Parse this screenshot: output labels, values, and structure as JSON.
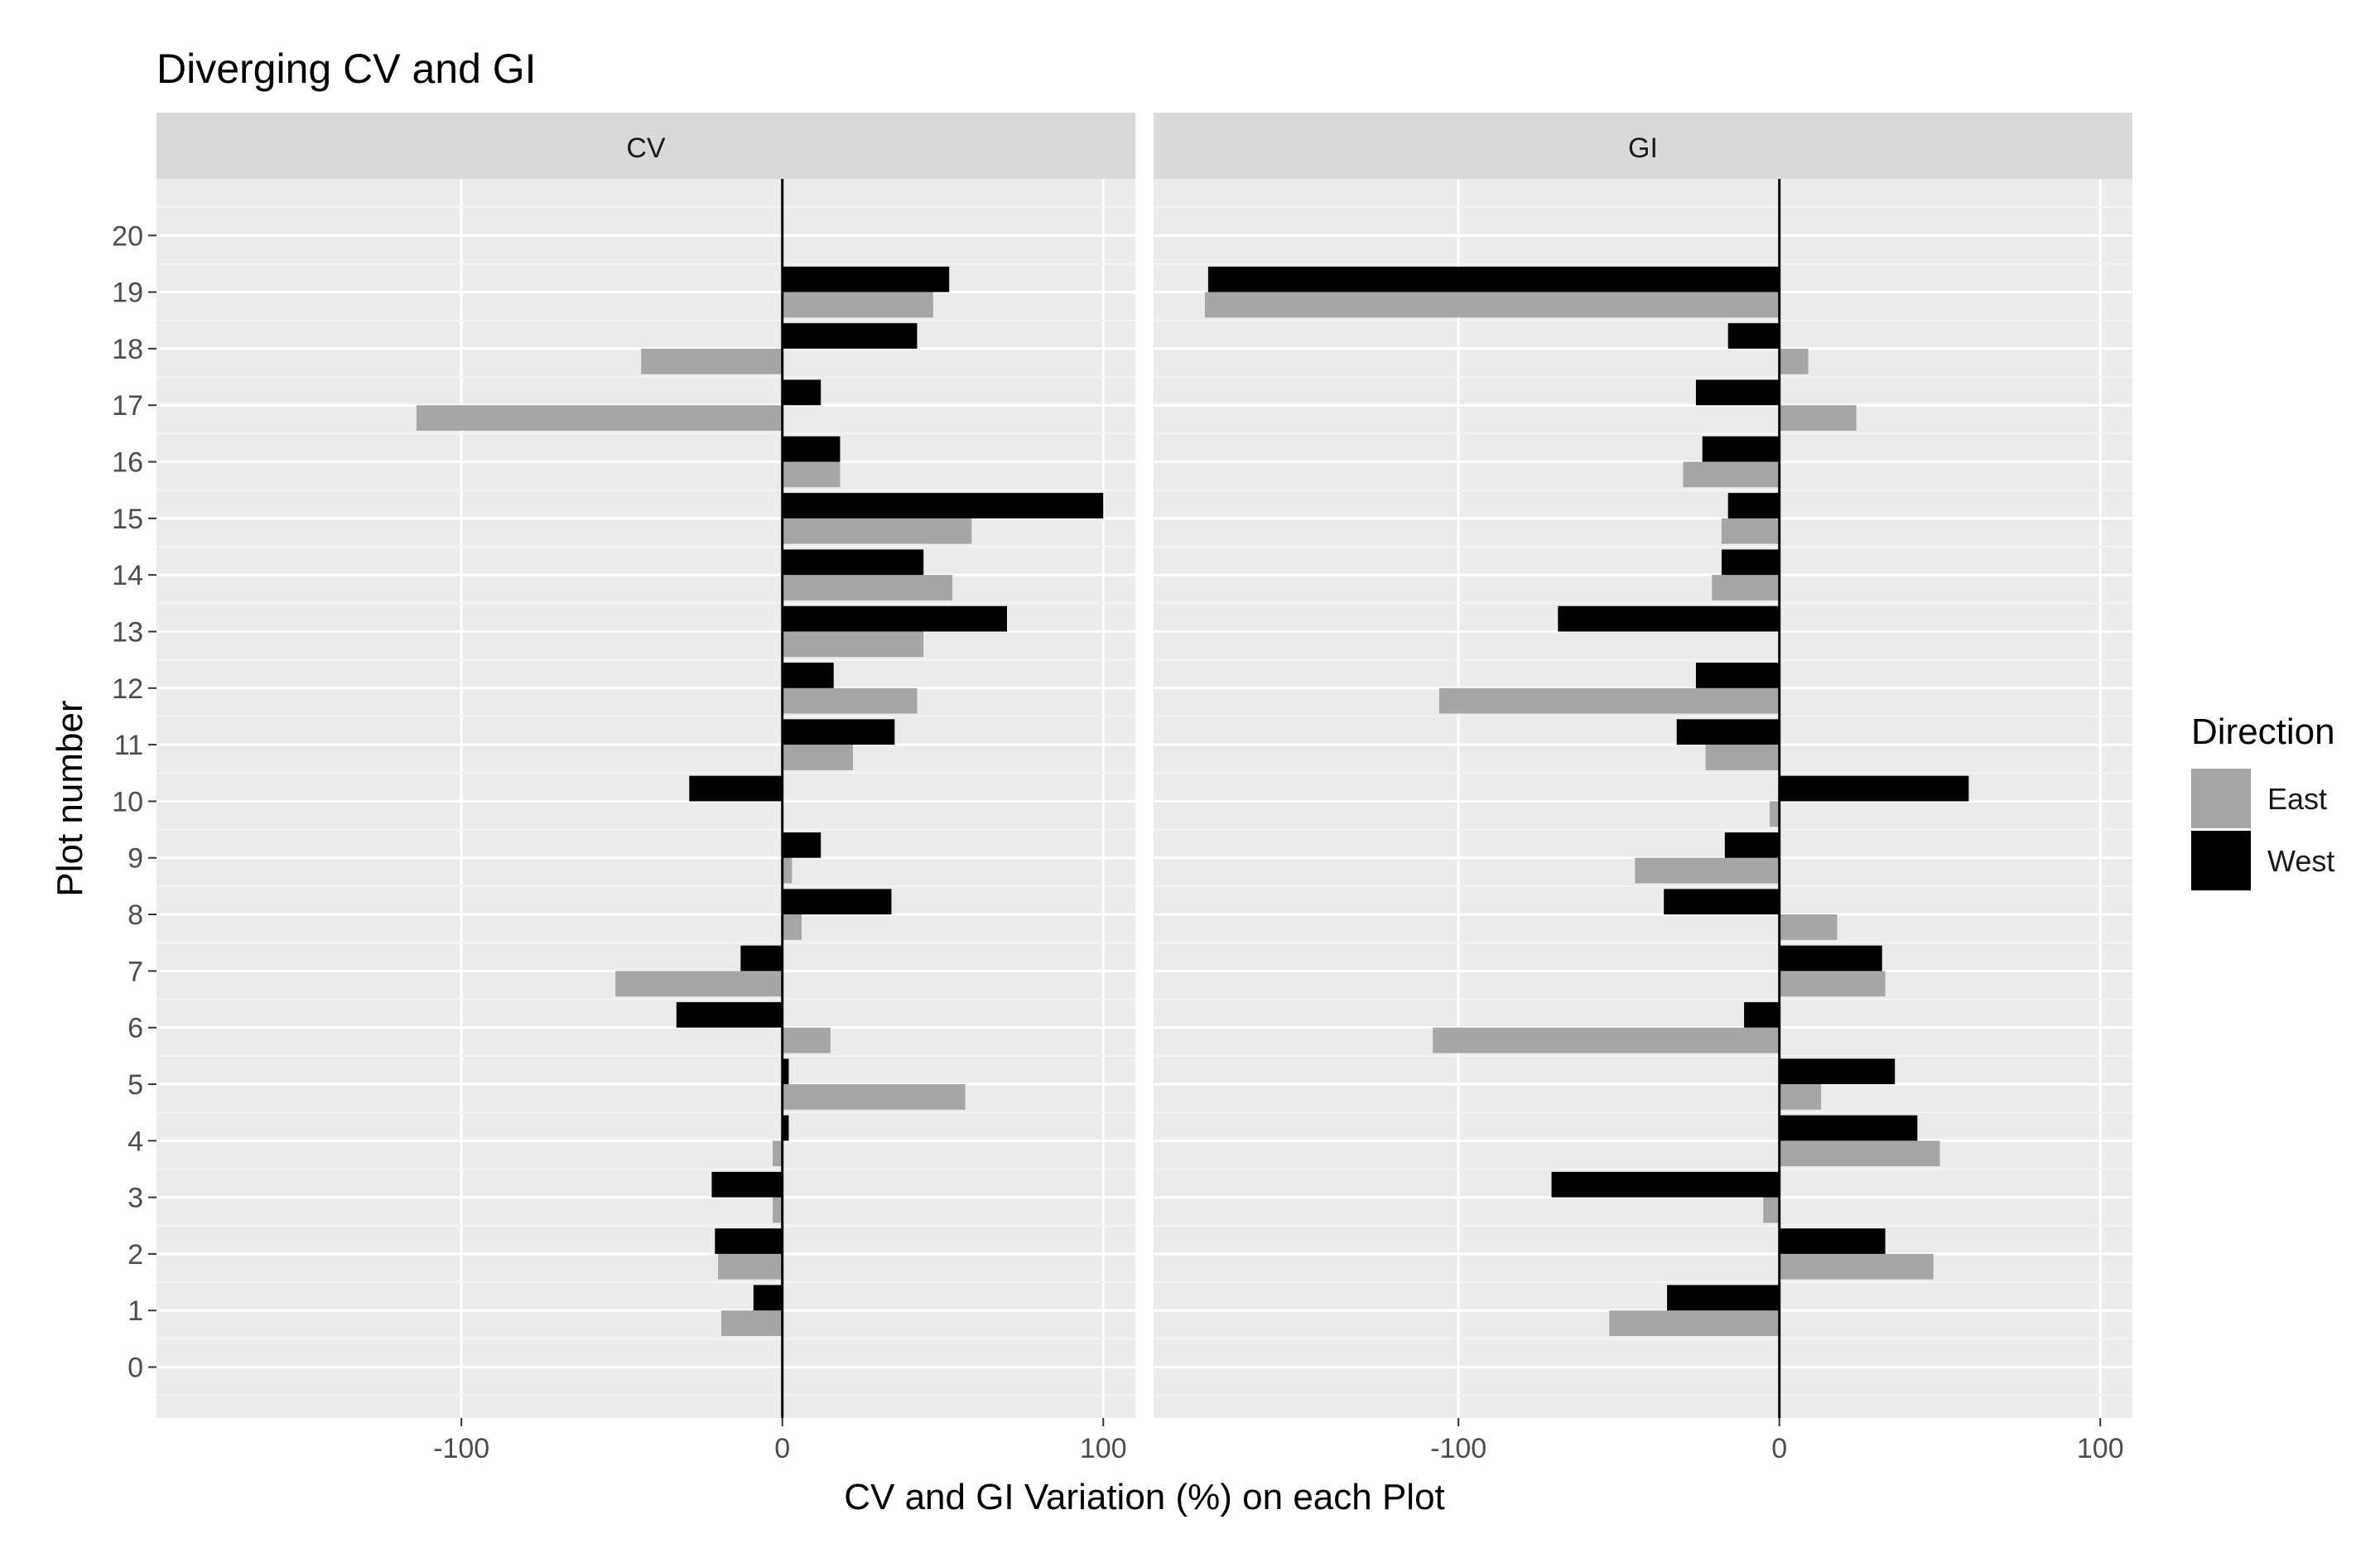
{
  "chart_data": {
    "type": "bar",
    "orientation": "horizontal",
    "title": "Diverging CV and GI",
    "xlabel": "CV and GI Variation (%) on each Plot",
    "ylabel": "Plot number",
    "xlim": [
      -195,
      110
    ],
    "ylim": [
      -0.9,
      21
    ],
    "xticks": [
      -100,
      0,
      100
    ],
    "yticks": [
      0,
      1,
      2,
      3,
      4,
      5,
      6,
      7,
      8,
      9,
      10,
      11,
      12,
      13,
      14,
      15,
      16,
      17,
      18,
      19,
      20
    ],
    "grid": true,
    "legend": {
      "title": "Direction",
      "position": "right",
      "entries": [
        {
          "name": "East",
          "color": "#a6a6a6"
        },
        {
          "name": "West",
          "color": "#000000"
        }
      ]
    },
    "plots": [
      1,
      2,
      3,
      4,
      5,
      6,
      7,
      8,
      9,
      10,
      11,
      12,
      13,
      14,
      15,
      16,
      17,
      18,
      19
    ],
    "panels": [
      {
        "name": "CV",
        "series": [
          {
            "name": "East",
            "values": [
              -19,
              -20,
              -3,
              -3,
              57,
              15,
              -52,
              6,
              3,
              0,
              22,
              42,
              44,
              53,
              59,
              18,
              -114,
              -44,
              47
            ]
          },
          {
            "name": "West",
            "values": [
              -9,
              -21,
              -22,
              2,
              2,
              -33,
              -13,
              34,
              12,
              -29,
              35,
              16,
              70,
              44,
              100,
              18,
              12,
              42,
              52
            ]
          }
        ]
      },
      {
        "name": "GI",
        "series": [
          {
            "name": "East",
            "values": [
              -53,
              48,
              -5,
              50,
              13,
              -108,
              33,
              18,
              -45,
              -3,
              -23,
              -106,
              0,
              -21,
              -18,
              -30,
              24,
              9,
              -179
            ]
          },
          {
            "name": "West",
            "values": [
              -35,
              33,
              -71,
              43,
              36,
              -11,
              32,
              -36,
              -17,
              59,
              -32,
              -26,
              -69,
              -18,
              -16,
              -24,
              -26,
              -16,
              -178
            ]
          }
        ]
      }
    ]
  }
}
